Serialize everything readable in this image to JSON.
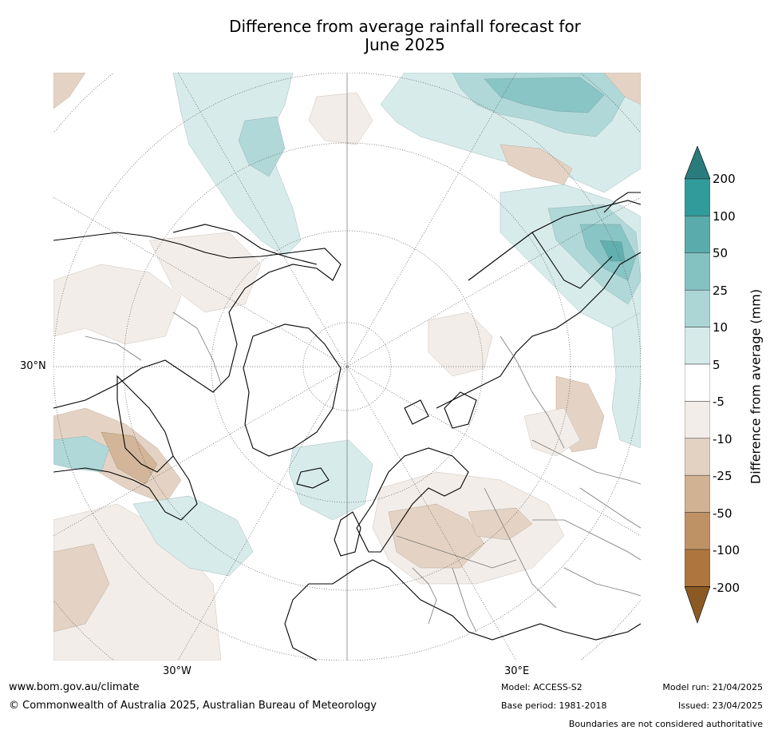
{
  "title_line1": "Difference from average rainfall forecast for",
  "title_line2": "June 2025",
  "map": {
    "projection": "north-polar-stereographic",
    "lat_label": "30°N",
    "lon_labels": [
      "30°W",
      "30°E"
    ],
    "graticule": "dotted"
  },
  "colorbar": {
    "label": "Difference from average (mm)",
    "ticks": [
      "200",
      "100",
      "50",
      "25",
      "10",
      "5",
      "-5",
      "-10",
      "-25",
      "-50",
      "-100",
      "-200"
    ],
    "colors": {
      "above_200": "#2a7c7c",
      "100_to_200": "#319b9b",
      "50_to_100": "#5aabab",
      "25_to_50": "#84c2c2",
      "10_to_25": "#acd6d6",
      "5_to_10": "#d6eaea",
      "neutral": "#ffffff",
      "m5_to_m10": "#f2ede8",
      "m10_to_m25": "#e3d1c1",
      "m25_to_m50": "#d1b394",
      "m50_to_m100": "#bf9265",
      "m100_to_m200": "#ae753e",
      "below_m200": "#8b5a24"
    }
  },
  "footer": {
    "website": "www.bom.gov.au/climate",
    "copyright": "© Commonwealth of Australia 2025, Australian Bureau of Meteorology",
    "model": "Model: ACCESS-S2",
    "base_period": "Base period: 1981-2018",
    "model_run": "Model run: 21/04/2025",
    "issued": "Issued: 23/04/2025",
    "disclaimer": "Boundaries are not considered authoritative"
  }
}
